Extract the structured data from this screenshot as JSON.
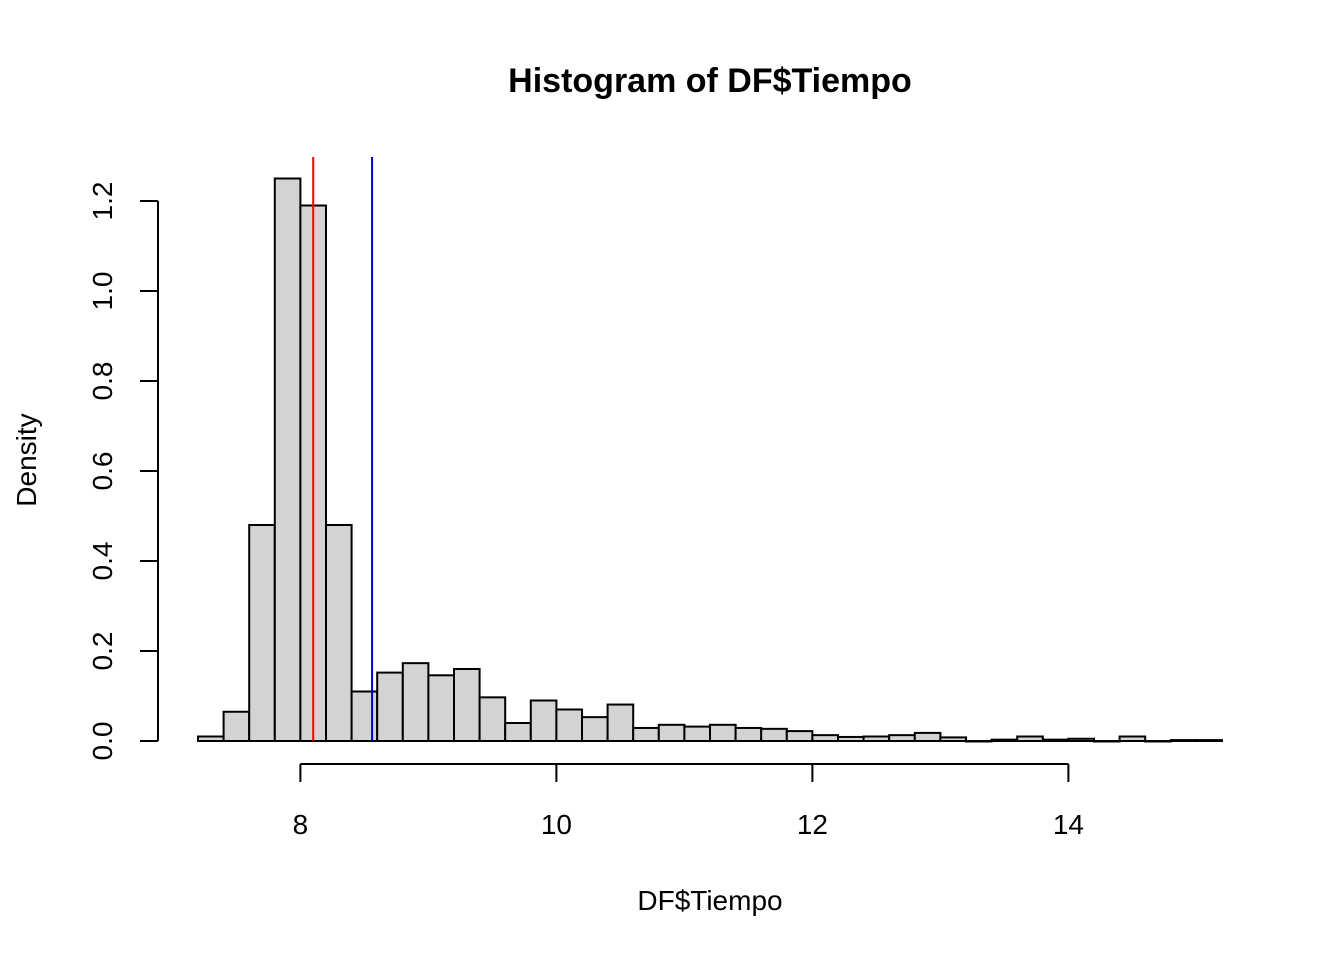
{
  "chart_data": {
    "type": "bar",
    "subtype": "histogram",
    "title": "Histogram of DF$Tiempo",
    "xlabel": "DF$Tiempo",
    "ylabel": "Density",
    "bin_width": 0.2,
    "bins_start": [
      7.2,
      7.4,
      7.6,
      7.8,
      8.0,
      8.2,
      8.4,
      8.6,
      8.8,
      9.0,
      9.2,
      9.4,
      9.6,
      9.8,
      10.0,
      10.2,
      10.4,
      10.6,
      10.8,
      11.0,
      11.2,
      11.4,
      11.6,
      11.8,
      12.0,
      12.2,
      12.4,
      12.6,
      12.8,
      13.0,
      13.2,
      13.4,
      13.6,
      13.8,
      14.0,
      14.2,
      14.4,
      14.6,
      14.8,
      15.0
    ],
    "values": [
      0.01,
      0.065,
      0.48,
      1.25,
      1.19,
      0.48,
      0.11,
      0.152,
      0.173,
      0.146,
      0.16,
      0.097,
      0.04,
      0.09,
      0.07,
      0.053,
      0.081,
      0.029,
      0.036,
      0.032,
      0.036,
      0.029,
      0.027,
      0.022,
      0.013,
      0.009,
      0.01,
      0.013,
      0.018,
      0.008,
      0.0,
      0.003,
      0.01,
      0.003,
      0.005,
      0.0,
      0.01,
      0.0,
      0.002,
      0.002
    ],
    "xlim": [
      7.2,
      15.2
    ],
    "ylim": [
      0,
      1.3
    ],
    "x_ticks": [
      8,
      10,
      12,
      14
    ],
    "x_tick_labels": [
      "8",
      "10",
      "12",
      "14"
    ],
    "y_ticks": [
      0.0,
      0.2,
      0.4,
      0.6,
      0.8,
      1.0,
      1.2
    ],
    "y_tick_labels": [
      "0.0",
      "0.2",
      "0.4",
      "0.6",
      "0.8",
      "1.0",
      "1.2"
    ],
    "vlines": [
      {
        "x": 8.1,
        "color": "#ff0000"
      },
      {
        "x": 8.56,
        "color": "#0000cc"
      }
    ],
    "bar_fill": "#d3d3d3",
    "bar_stroke": "#000000",
    "grid": false,
    "legend": "none"
  }
}
